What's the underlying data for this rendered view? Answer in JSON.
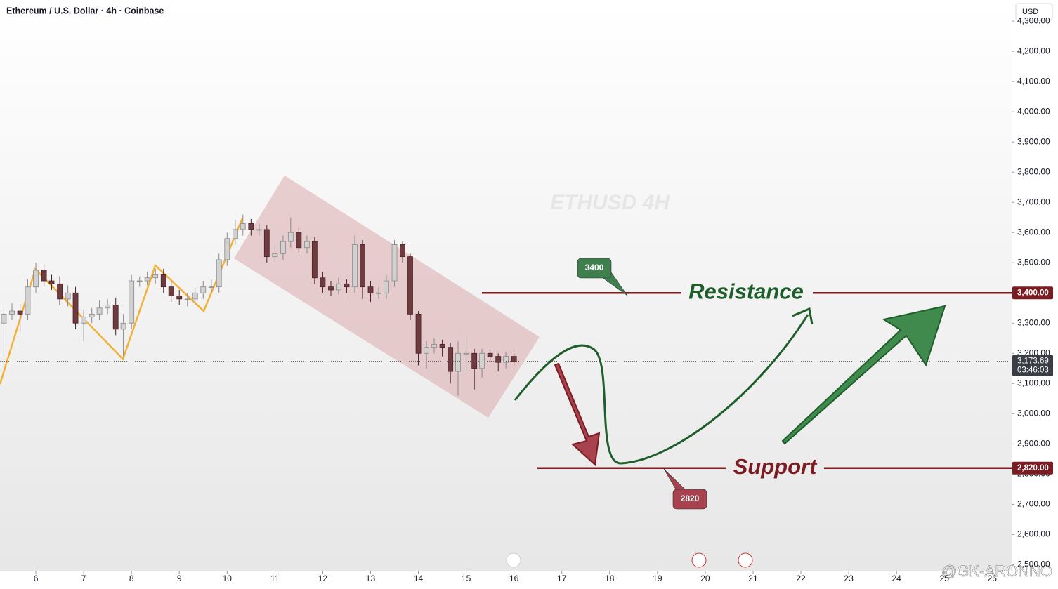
{
  "chart_data": {
    "type": "candlestick",
    "title": "Ethereum / U.S. Dollar · 4h · Coinbase",
    "currency": "USD",
    "watermark": "ETHUSD 4H",
    "signature": "@GK-ARONNO",
    "up_color": "#d1d1d1",
    "down_color": "#6e3b40",
    "x": [
      5.33,
      5.5,
      5.67,
      5.83,
      6,
      6.17,
      6.33,
      6.5,
      6.67,
      6.83,
      7,
      7.17,
      7.33,
      7.5,
      7.67,
      7.83,
      8,
      8.17,
      8.33,
      8.5,
      8.67,
      8.83,
      9,
      9.17,
      9.33,
      9.5,
      9.67,
      9.83,
      10,
      10.17,
      10.33,
      10.5,
      10.67,
      10.83,
      11,
      11.17,
      11.33,
      11.5,
      11.67,
      11.83,
      12,
      12.17,
      12.33,
      12.5,
      12.67,
      12.83,
      13,
      13.17,
      13.33,
      13.5,
      13.67,
      13.83,
      14,
      14.17,
      14.33,
      14.5,
      14.67,
      14.83,
      15,
      15.17,
      15.33,
      15.5,
      15.67,
      15.83,
      16
    ],
    "open": [
      3300,
      3330,
      3340,
      3330,
      3420,
      3475,
      3440,
      3430,
      3380,
      3400,
      3300,
      3320,
      3330,
      3350,
      3360,
      3280,
      3300,
      3440,
      3440,
      3450,
      3460,
      3420,
      3390,
      3380,
      3380,
      3400,
      3420,
      3420,
      3510,
      3580,
      3610,
      3630,
      3610,
      3610,
      3520,
      3530,
      3570,
      3600,
      3550,
      3570,
      3450,
      3420,
      3410,
      3430,
      3420,
      3560,
      3420,
      3400,
      3400,
      3440,
      3560,
      3520,
      3330,
      3200,
      3220,
      3230,
      3220,
      3140,
      3200,
      3200,
      3150,
      3200,
      3190,
      3170,
      3190
    ],
    "high": [
      3355,
      3365,
      3365,
      3445,
      3500,
      3495,
      3460,
      3455,
      3425,
      3420,
      3345,
      3350,
      3375,
      3380,
      3385,
      3330,
      3460,
      3455,
      3470,
      3480,
      3480,
      3440,
      3410,
      3400,
      3420,
      3440,
      3445,
      3530,
      3600,
      3640,
      3660,
      3645,
      3630,
      3625,
      3555,
      3590,
      3650,
      3615,
      3590,
      3585,
      3470,
      3440,
      3450,
      3445,
      3590,
      3575,
      3440,
      3420,
      3460,
      3575,
      3570,
      3530,
      3340,
      3240,
      3250,
      3245,
      3235,
      3240,
      3260,
      3215,
      3215,
      3210,
      3200,
      3205,
      3200
    ],
    "low": [
      3190,
      3310,
      3270,
      3310,
      3400,
      3420,
      3410,
      3360,
      3355,
      3280,
      3240,
      3300,
      3310,
      3330,
      3260,
      3190,
      3280,
      3420,
      3425,
      3430,
      3400,
      3370,
      3360,
      3355,
      3360,
      3380,
      3400,
      3400,
      3490,
      3560,
      3590,
      3590,
      3590,
      3500,
      3500,
      3510,
      3550,
      3530,
      3530,
      3430,
      3400,
      3390,
      3395,
      3400,
      3400,
      3380,
      3370,
      3380,
      3380,
      3420,
      3500,
      3310,
      3160,
      3150,
      3200,
      3190,
      3100,
      3060,
      3140,
      3080,
      3120,
      3170,
      3140,
      3150,
      3160
    ],
    "close": [
      3330,
      3340,
      3330,
      3420,
      3475,
      3440,
      3430,
      3380,
      3400,
      3300,
      3320,
      3330,
      3350,
      3360,
      3280,
      3300,
      3440,
      3440,
      3450,
      3460,
      3420,
      3390,
      3380,
      3380,
      3400,
      3420,
      3420,
      3510,
      3580,
      3610,
      3630,
      3610,
      3610,
      3520,
      3530,
      3570,
      3600,
      3550,
      3570,
      3450,
      3420,
      3410,
      3430,
      3420,
      3560,
      3420,
      3400,
      3400,
      3440,
      3560,
      3520,
      3330,
      3200,
      3220,
      3230,
      3220,
      3140,
      3200,
      3200,
      3150,
      3200,
      3190,
      3170,
      3190,
      3173.69
    ],
    "last_price_label": "3,173.69",
    "countdown": "03:46:03",
    "zigzag": {
      "color": "#f2b134",
      "x": [
        5.25,
        5.99,
        7.82,
        8.5,
        9.51,
        10.32
      ],
      "y": [
        3098,
        3479,
        3181,
        3491,
        3340,
        3647
      ]
    },
    "levels": [
      {
        "name": "Resistance",
        "value": 3400,
        "value_label": "3,400.00",
        "callout": "3400",
        "color": "#7b1c22",
        "text_color": "#1e5e2a",
        "callout_color": "#3f7f4e"
      },
      {
        "name": "Support",
        "value": 2820,
        "value_label": "2,820.00",
        "callout": "2820",
        "color": "#7b1c22",
        "text_color": "#7b1c22",
        "callout_color": "#a8424e"
      }
    ],
    "xlim": [
      5.25,
      26.26
    ],
    "xticks": [
      6,
      7,
      8,
      9,
      10,
      11,
      12,
      13,
      14,
      15,
      16,
      17,
      18,
      19,
      20,
      21,
      22,
      23,
      24,
      25,
      26
    ],
    "ylim": [
      2480,
      4370
    ],
    "yticks": [
      {
        "value": 2500,
        "label": "2,500.00"
      },
      {
        "value": 2600,
        "label": "2,600.00"
      },
      {
        "value": 2700,
        "label": "2,700.00"
      },
      {
        "value": 2800,
        "label": "2,800.00"
      },
      {
        "value": 2900,
        "label": "2,900.00"
      },
      {
        "value": 3000,
        "label": "3,000.00"
      },
      {
        "value": 3100,
        "label": "3,100.00"
      },
      {
        "value": 3200,
        "label": "3,200.00"
      },
      {
        "value": 3300,
        "label": "3,300.00"
      },
      {
        "value": 3400,
        "label": "3,400.00"
      },
      {
        "value": 3500,
        "label": "3,500.00"
      },
      {
        "value": 3600,
        "label": "3,600.00"
      },
      {
        "value": 3700,
        "label": "3,700.00"
      },
      {
        "value": 3800,
        "label": "3,800.00"
      },
      {
        "value": 3900,
        "label": "3,900.00"
      },
      {
        "value": 4000,
        "label": "4,000.00"
      },
      {
        "value": 4100,
        "label": "4,100.00"
      },
      {
        "value": 4200,
        "label": "4,200.00"
      },
      {
        "value": 4300,
        "label": "4,300.00"
      }
    ]
  }
}
